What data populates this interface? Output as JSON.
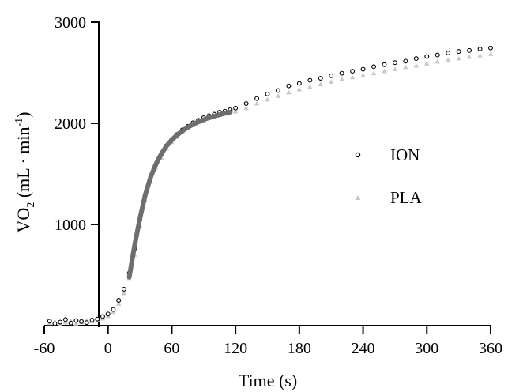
{
  "chart_data": {
    "type": "scatter",
    "title": "",
    "xlabel": "Time (s)",
    "ylabel": {
      "base": "VO",
      "sub": "2",
      "units_open": " (mL · min",
      "sup": "-1",
      "units_close": ")"
    },
    "xlim": [
      -60,
      360
    ],
    "ylim": [
      0,
      3000
    ],
    "xticks": [
      -60,
      0,
      60,
      120,
      180,
      240,
      300,
      360
    ],
    "yticks": [
      1000,
      2000,
      3000
    ],
    "grid": false,
    "legend_position": "right",
    "series": [
      {
        "name": "ION",
        "marker": "open-circle",
        "color": "#000000",
        "points": [
          [
            -55,
            45
          ],
          [
            -50,
            20
          ],
          [
            -45,
            35
          ],
          [
            -40,
            60
          ],
          [
            -35,
            25
          ],
          [
            -30,
            50
          ],
          [
            -25,
            40
          ],
          [
            -20,
            30
          ],
          [
            -15,
            55
          ],
          [
            -10,
            65
          ],
          [
            -5,
            90
          ],
          [
            0,
            115
          ],
          [
            5,
            160
          ],
          [
            10,
            250
          ],
          [
            15,
            360
          ],
          [
            20,
            520
          ],
          [
            25,
            760
          ],
          [
            30,
            1050
          ],
          [
            35,
            1290
          ],
          [
            40,
            1460
          ],
          [
            45,
            1590
          ],
          [
            50,
            1690
          ],
          [
            55,
            1780
          ],
          [
            60,
            1840
          ],
          [
            65,
            1890
          ],
          [
            70,
            1935
          ],
          [
            75,
            1970
          ],
          [
            80,
            2005
          ],
          [
            85,
            2030
          ],
          [
            90,
            2055
          ],
          [
            95,
            2075
          ],
          [
            100,
            2090
          ],
          [
            105,
            2110
          ],
          [
            110,
            2120
          ],
          [
            115,
            2135
          ],
          [
            120,
            2150
          ],
          [
            130,
            2195
          ],
          [
            140,
            2245
          ],
          [
            150,
            2290
          ],
          [
            160,
            2325
          ],
          [
            170,
            2370
          ],
          [
            180,
            2395
          ],
          [
            190,
            2425
          ],
          [
            200,
            2445
          ],
          [
            210,
            2470
          ],
          [
            220,
            2495
          ],
          [
            230,
            2515
          ],
          [
            240,
            2535
          ],
          [
            250,
            2560
          ],
          [
            260,
            2580
          ],
          [
            270,
            2600
          ],
          [
            280,
            2615
          ],
          [
            290,
            2640
          ],
          [
            300,
            2660
          ],
          [
            310,
            2675
          ],
          [
            320,
            2695
          ],
          [
            330,
            2710
          ],
          [
            340,
            2720
          ],
          [
            350,
            2735
          ],
          [
            360,
            2745
          ]
        ]
      },
      {
        "name": "PLA",
        "marker": "filled-triangle",
        "color": "#c8c8c8",
        "points": [
          [
            -55,
            25
          ],
          [
            -50,
            40
          ],
          [
            -45,
            15
          ],
          [
            -40,
            30
          ],
          [
            -35,
            45
          ],
          [
            -30,
            20
          ],
          [
            -25,
            35
          ],
          [
            -20,
            50
          ],
          [
            -15,
            40
          ],
          [
            -10,
            55
          ],
          [
            -5,
            70
          ],
          [
            0,
            95
          ],
          [
            5,
            135
          ],
          [
            10,
            215
          ],
          [
            15,
            320
          ],
          [
            20,
            470
          ],
          [
            25,
            700
          ],
          [
            30,
            990
          ],
          [
            35,
            1240
          ],
          [
            40,
            1420
          ],
          [
            45,
            1560
          ],
          [
            50,
            1660
          ],
          [
            55,
            1750
          ],
          [
            60,
            1815
          ],
          [
            65,
            1865
          ],
          [
            70,
            1910
          ],
          [
            75,
            1950
          ],
          [
            80,
            1980
          ],
          [
            85,
            2010
          ],
          [
            90,
            2030
          ],
          [
            95,
            2050
          ],
          [
            100,
            2065
          ],
          [
            105,
            2080
          ],
          [
            110,
            2095
          ],
          [
            115,
            2105
          ],
          [
            120,
            2115
          ],
          [
            130,
            2150
          ],
          [
            140,
            2195
          ],
          [
            150,
            2235
          ],
          [
            160,
            2270
          ],
          [
            170,
            2305
          ],
          [
            180,
            2335
          ],
          [
            190,
            2360
          ],
          [
            200,
            2385
          ],
          [
            210,
            2410
          ],
          [
            220,
            2435
          ],
          [
            230,
            2455
          ],
          [
            240,
            2475
          ],
          [
            250,
            2495
          ],
          [
            260,
            2515
          ],
          [
            270,
            2535
          ],
          [
            280,
            2555
          ],
          [
            290,
            2570
          ],
          [
            300,
            2590
          ],
          [
            310,
            2610
          ],
          [
            320,
            2625
          ],
          [
            330,
            2640
          ],
          [
            340,
            2655
          ],
          [
            350,
            2670
          ],
          [
            360,
            2685
          ]
        ]
      }
    ],
    "fit_curve": {
      "color": "#6e6e6e",
      "points": [
        [
          20,
          480
        ],
        [
          25,
          790
        ],
        [
          30,
          1060
        ],
        [
          35,
          1290
        ],
        [
          40,
          1465
        ],
        [
          45,
          1595
        ],
        [
          50,
          1695
        ],
        [
          55,
          1775
        ],
        [
          60,
          1835
        ],
        [
          65,
          1885
        ],
        [
          70,
          1925
        ],
        [
          75,
          1960
        ],
        [
          80,
          1990
        ],
        [
          85,
          2015
        ],
        [
          90,
          2035
        ],
        [
          95,
          2055
        ],
        [
          100,
          2070
        ],
        [
          105,
          2085
        ],
        [
          110,
          2100
        ],
        [
          115,
          2110
        ]
      ]
    }
  }
}
